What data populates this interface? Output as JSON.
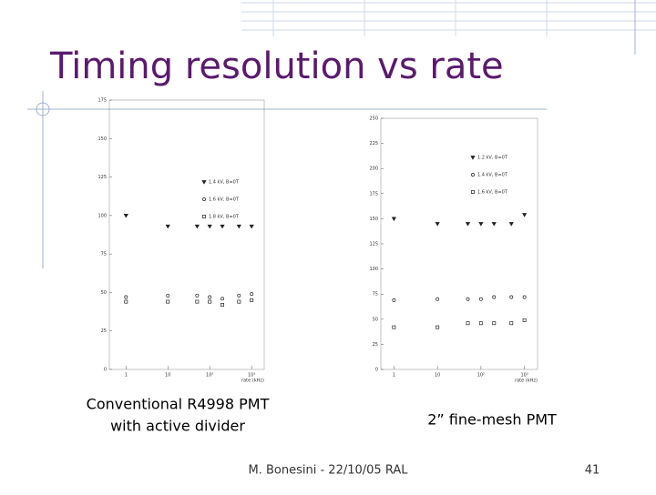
{
  "slide": {
    "title": "Timing resolution vs rate",
    "caption_left": [
      "Conventional R4998 PMT",
      "with active divider"
    ],
    "caption_right": "2” fine-mesh PMT",
    "footer": "M. Bonesini - 22/10/05 RAL",
    "page": "41"
  },
  "chart_data": [
    {
      "type": "scatter",
      "xlog": true,
      "xlabel": "rate (kHz)",
      "xlim": [
        0.4,
        2000
      ],
      "ylim": [
        0,
        175
      ],
      "xticks": [
        1,
        10,
        {
          "value": 100,
          "label": "10²"
        },
        {
          "value": 1000,
          "label": "10³"
        }
      ],
      "yticks": [
        0,
        25,
        50,
        75,
        100,
        125,
        150,
        175
      ],
      "series": [
        {
          "name": "1.4 kV, B=0T",
          "marker": "triangle",
          "x": [
            1,
            10,
            50,
            100,
            200,
            500,
            1000
          ],
          "values": [
            100,
            93,
            93,
            93,
            93,
            93,
            93
          ]
        },
        {
          "name": "1.6 kV, B=0T",
          "marker": "circle",
          "x": [
            1,
            10,
            50,
            100,
            200,
            500,
            1000
          ],
          "values": [
            47,
            48,
            48,
            47,
            46,
            48,
            49
          ]
        },
        {
          "name": "1.8 kV, B=0T",
          "marker": "square",
          "x": [
            1,
            10,
            50,
            100,
            200,
            500,
            1000
          ],
          "values": [
            44,
            44,
            44,
            44,
            42,
            44,
            45
          ]
        }
      ]
    },
    {
      "type": "scatter",
      "xlog": true,
      "xlabel": "rate (kHz)",
      "xlim": [
        0.5,
        2000
      ],
      "ylim": [
        0,
        250
      ],
      "xticks": [
        1,
        10,
        {
          "value": 100,
          "label": "10²"
        },
        {
          "value": 1000,
          "label": "10³"
        }
      ],
      "yticks": [
        0,
        25,
        50,
        75,
        100,
        125,
        150,
        175,
        200,
        225,
        250
      ],
      "series": [
        {
          "name": "1.2 kV, B=0T",
          "marker": "triangle",
          "x": [
            1,
            10,
            50,
            100,
            200,
            500,
            1000
          ],
          "values": [
            150,
            145,
            145,
            145,
            145,
            145,
            154
          ]
        },
        {
          "name": "1.4 kV, B=0T",
          "marker": "circle",
          "x": [
            1,
            10,
            50,
            100,
            200,
            500,
            1000
          ],
          "values": [
            69,
            70,
            70,
            70,
            72,
            72,
            72
          ]
        },
        {
          "name": "1.6 kV, B=0T",
          "marker": "square",
          "x": [
            1,
            10,
            50,
            100,
            200,
            500,
            1000
          ],
          "values": [
            42,
            42,
            46,
            46,
            46,
            46,
            49
          ]
        }
      ]
    }
  ]
}
